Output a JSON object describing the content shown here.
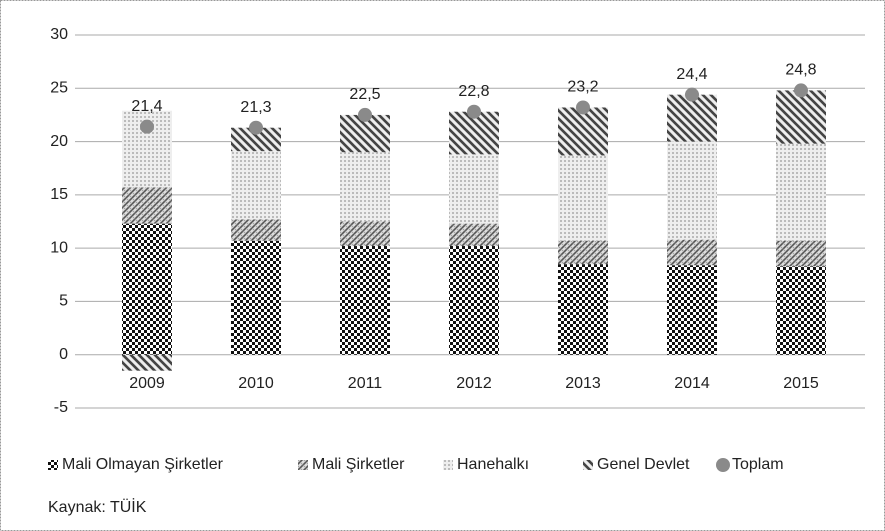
{
  "chart_data": {
    "type": "bar",
    "stacked": true,
    "categories": [
      "2009",
      "2010",
      "2011",
      "2012",
      "2013",
      "2014",
      "2015"
    ],
    "series": [
      {
        "name": "Mali Olmayan Şirketler",
        "color": "#111111",
        "pattern": "checker",
        "values": [
          12.3,
          10.7,
          10.2,
          10.2,
          8.5,
          8.4,
          8.3
        ]
      },
      {
        "name": "Mali Şirketler",
        "color": "#777777",
        "pattern": "crosshatch",
        "values": [
          3.4,
          2.0,
          2.3,
          2.1,
          2.2,
          2.4,
          2.4
        ]
      },
      {
        "name": "Hanehalkı",
        "color": "#cccccc",
        "pattern": "dots",
        "values": [
          7.2,
          6.4,
          6.5,
          6.5,
          8.0,
          9.2,
          9.1
        ]
      },
      {
        "name": "Genel Devlet",
        "color": "#444444",
        "pattern": "stripes",
        "values": [
          -1.5,
          2.2,
          3.5,
          4.0,
          4.5,
          4.4,
          5.0
        ]
      },
      {
        "name": "Toplam",
        "color": "#8a8a8a",
        "type": "marker",
        "values": [
          21.4,
          21.3,
          22.5,
          22.8,
          23.2,
          24.4,
          24.8
        ],
        "value_labels": [
          "21,4",
          "21,3",
          "22,5",
          "22,8",
          "23,2",
          "24,4",
          "24,8"
        ]
      }
    ],
    "ylim": [
      -5,
      30
    ],
    "yticks": [
      -5,
      0,
      5,
      10,
      15,
      20,
      25,
      30
    ],
    "grid": true,
    "legend": "bottom",
    "source": "Kaynak: TÜİK"
  }
}
